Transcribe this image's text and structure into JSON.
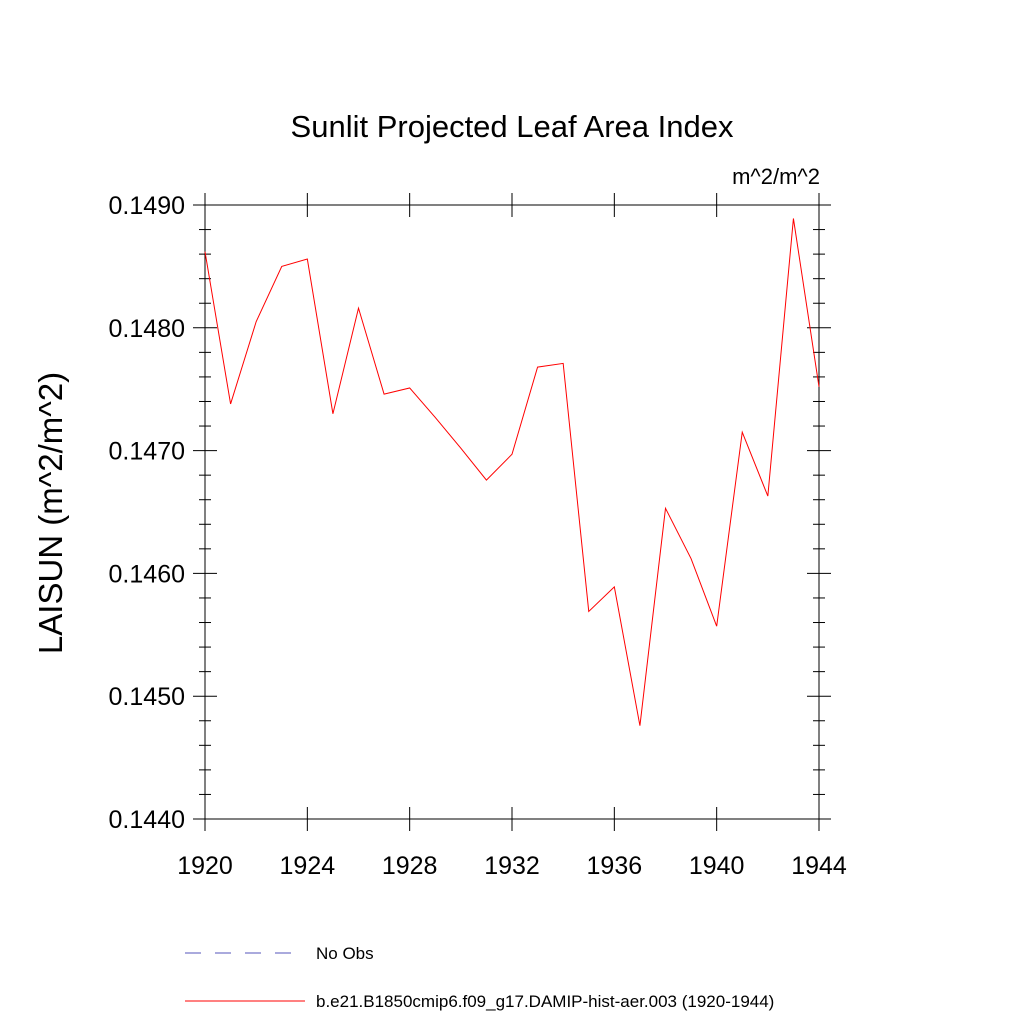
{
  "chart_data": {
    "type": "line",
    "title": "Sunlit Projected Leaf Area Index",
    "units_label": "m^2/m^2",
    "ylabel": "LAISUN  (m^2/m^2)",
    "xlabel": "",
    "xlim": [
      1920,
      1944
    ],
    "ylim": [
      0.144,
      0.149
    ],
    "x_ticks": [
      "1920",
      "1924",
      "1928",
      "1932",
      "1936",
      "1940",
      "1944"
    ],
    "y_ticks": [
      "0.1440",
      "0.1450",
      "0.1460",
      "0.1470",
      "0.1480",
      "0.1490"
    ],
    "x": [
      1920,
      1921,
      1922,
      1923,
      1924,
      1925,
      1926,
      1927,
      1928,
      1929,
      1930,
      1931,
      1932,
      1933,
      1934,
      1935,
      1936,
      1937,
      1938,
      1939,
      1940,
      1941,
      1942,
      1943,
      1944
    ],
    "series": [
      {
        "name": "b.e21.B1850cmip6.f09_g17.DAMIP-hist-aer.003 (1920-1944)",
        "color": "#ff0000",
        "style": "solid",
        "values": [
          0.14862,
          0.14738,
          0.14805,
          0.1485,
          0.14856,
          0.1473,
          0.14816,
          0.14746,
          0.14751,
          0.14727,
          0.14702,
          0.14676,
          0.14697,
          0.14768,
          0.14771,
          0.14569,
          0.14589,
          0.14476,
          0.14653,
          0.14612,
          0.14557,
          0.14715,
          0.14663,
          0.14889,
          0.14752
        ]
      }
    ],
    "legend": [
      {
        "label": "No Obs",
        "color": "#5555bb",
        "style": "dashed"
      },
      {
        "label": "b.e21.B1850cmip6.f09_g17.DAMIP-hist-aer.003 (1920-1944)",
        "color": "#ff0000",
        "style": "solid"
      }
    ],
    "legend_position": "bottom",
    "grid": false
  }
}
